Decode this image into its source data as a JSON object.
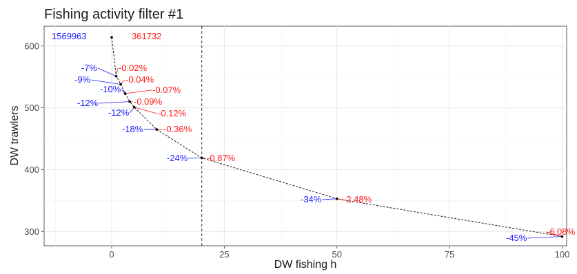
{
  "chart_data": {
    "type": "scatter",
    "title": "Fishing activity filter #1",
    "xlabel": "DW fishing h",
    "ylabel": "DW trawlers",
    "xlim": [
      -15,
      101
    ],
    "ylim": [
      277,
      632
    ],
    "x_ticks": [
      0,
      25,
      50,
      75,
      100
    ],
    "y_ticks": [
      300,
      400,
      500,
      600
    ],
    "grid": true,
    "threshold_x": 20,
    "totals": {
      "blue": "1569963",
      "red": "361732"
    },
    "colors": {
      "blue": "#1a1aff",
      "red": "#ff1a1a"
    },
    "points": [
      {
        "x": 0,
        "y": 614,
        "blue": "",
        "red": ""
      },
      {
        "x": 1,
        "y": 551,
        "blue": "-7%",
        "red": "-0.02%"
      },
      {
        "x": 2,
        "y": 538,
        "blue": "-9%",
        "red": "-0.04%"
      },
      {
        "x": 3,
        "y": 523,
        "blue": "-10%",
        "red": "-0.07%"
      },
      {
        "x": 4,
        "y": 510,
        "blue": "-12%",
        "red": "-0.09%"
      },
      {
        "x": 5,
        "y": 501,
        "blue": "-12%",
        "red": "-0.12%"
      },
      {
        "x": 10,
        "y": 465,
        "blue": "-18%",
        "red": "-0.36%"
      },
      {
        "x": 20,
        "y": 419,
        "blue": "-24%",
        "red": "-0.87%"
      },
      {
        "x": 50,
        "y": 353,
        "blue": "-34%",
        "red": "-2.48%"
      },
      {
        "x": 100,
        "y": 292,
        "blue": "-45%",
        "red": "-6.08%"
      }
    ]
  }
}
